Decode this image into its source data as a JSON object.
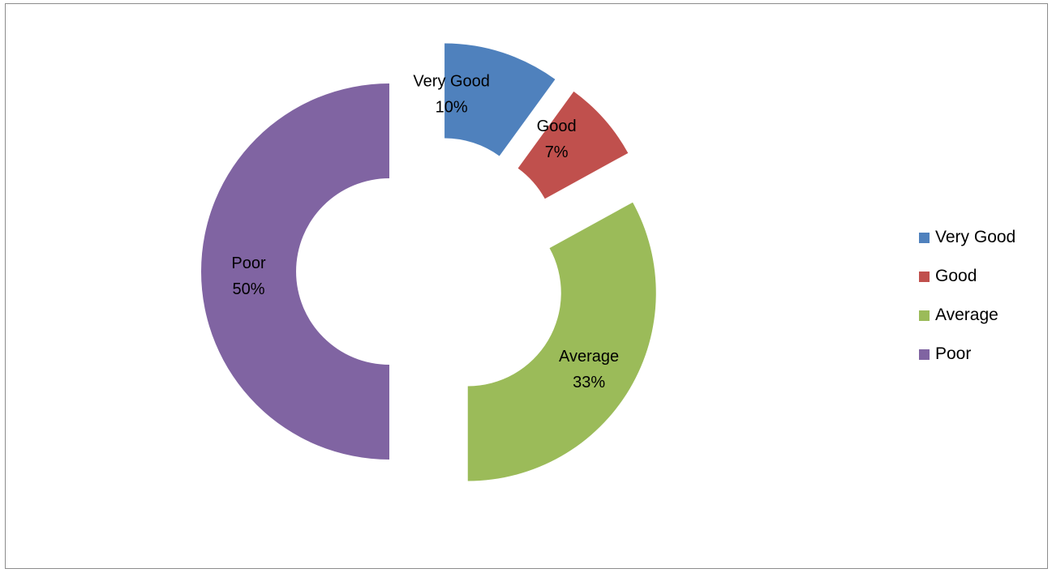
{
  "chart_data": {
    "type": "pie",
    "variant": "exploded-donut",
    "title": "",
    "categories": [
      "Very Good",
      "Good",
      "Average",
      "Poor"
    ],
    "values": [
      10,
      7,
      33,
      50
    ],
    "labels": [
      {
        "name": "Very Good",
        "value": "10%"
      },
      {
        "name": "Good",
        "value": "7%"
      },
      {
        "name": "Average",
        "value": "33%"
      },
      {
        "name": "Poor",
        "value": "50%"
      }
    ],
    "colors": [
      "#4F81BD",
      "#C0504D",
      "#9BBB59",
      "#8064A2"
    ],
    "legend_position": "right",
    "grid": false
  }
}
